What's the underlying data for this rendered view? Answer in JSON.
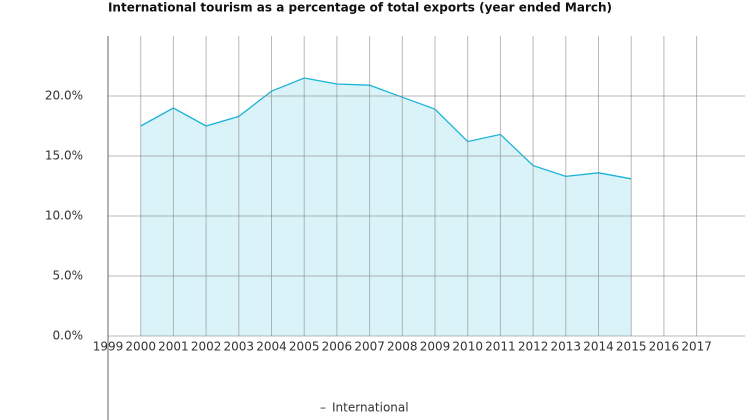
{
  "chart_data": {
    "type": "area",
    "title": "International tourism as a percentage of total exports (year ended March)",
    "categories": [
      "1999",
      "2000",
      "2001",
      "2002",
      "2003",
      "2004",
      "2005",
      "2006",
      "2007",
      "2008",
      "2009",
      "2010",
      "2011",
      "2012",
      "2013",
      "2014",
      "2015",
      "2016",
      "2017"
    ],
    "series": [
      {
        "name": "International",
        "color": "#1ab3d6",
        "values": [
          null,
          17.5,
          19.0,
          17.5,
          18.3,
          20.4,
          21.5,
          21.0,
          20.9,
          19.9,
          18.9,
          16.2,
          16.8,
          14.2,
          13.3,
          13.6,
          13.1,
          null,
          null
        ]
      }
    ],
    "ylim": [
      0,
      25
    ],
    "yticks": [
      {
        "value": 0,
        "label": "0.0%"
      },
      {
        "value": 5,
        "label": "5.0%"
      },
      {
        "value": 10,
        "label": "10.0%"
      },
      {
        "value": 15,
        "label": "15.0%"
      },
      {
        "value": 20,
        "label": "20.0%"
      }
    ],
    "grid": true,
    "legend": "bottom"
  }
}
